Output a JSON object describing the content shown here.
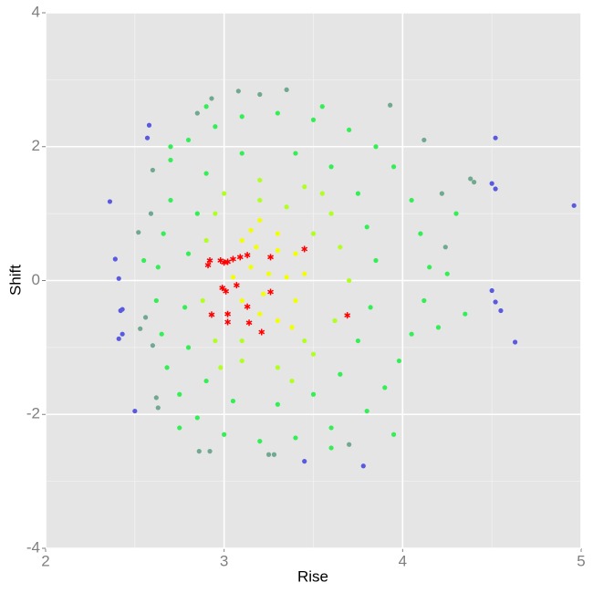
{
  "chart_data": {
    "type": "scatter",
    "xlabel": "Rise",
    "ylabel": "Shift",
    "xlim": [
      2,
      5
    ],
    "ylim": [
      -4,
      4
    ],
    "xticks": [
      2,
      3,
      4,
      5
    ],
    "yticks": [
      -4,
      -2,
      0,
      2,
      4
    ],
    "xminor": [
      2.5,
      3.5,
      4.5
    ],
    "yminor": [
      -3,
      -1,
      1,
      3
    ],
    "grid": true,
    "series": [
      {
        "color": "#5a5ae0",
        "marker": "circle",
        "x": [
          2.36,
          2.39,
          2.41,
          2.42,
          2.43,
          2.41,
          2.43,
          2.5,
          2.58,
          2.57,
          4.52,
          4.5,
          4.52,
          4.5,
          4.52,
          4.55,
          4.63,
          4.96,
          3.45,
          3.78
        ],
        "values": [
          1.18,
          0.32,
          0.03,
          -0.45,
          -0.43,
          -0.87,
          -0.8,
          -1.95,
          2.32,
          2.13,
          2.13,
          1.45,
          1.37,
          -0.15,
          -0.32,
          -0.45,
          -0.92,
          1.12,
          -2.7,
          -2.77
        ]
      },
      {
        "color": "#70a890",
        "marker": "circle",
        "x": [
          2.6,
          2.59,
          2.6,
          2.62,
          2.63,
          2.85,
          2.93,
          3.08,
          3.2,
          3.35,
          2.86,
          2.92,
          3.25,
          3.28,
          3.93,
          4.12,
          4.22,
          4.38,
          4.4,
          4.24,
          2.56,
          2.53,
          2.52,
          3.7
        ],
        "values": [
          1.65,
          1.0,
          -0.97,
          -1.75,
          -1.9,
          2.5,
          2.72,
          2.83,
          2.78,
          2.85,
          -2.55,
          -2.55,
          -2.6,
          -2.6,
          2.62,
          2.1,
          1.3,
          1.52,
          1.47,
          0.5,
          -0.55,
          -0.72,
          0.72,
          -2.45
        ]
      },
      {
        "color": "#33ee55",
        "marker": "circle",
        "x": [
          2.7,
          2.8,
          2.95,
          3.1,
          3.3,
          3.5,
          3.7,
          3.85,
          3.95,
          4.05,
          4.1,
          4.15,
          4.12,
          4.05,
          3.98,
          3.9,
          3.8,
          3.6,
          3.4,
          3.2,
          3.0,
          2.85,
          2.75,
          2.68,
          2.65,
          2.62,
          2.63,
          2.66,
          2.7,
          2.9,
          3.1,
          3.4,
          3.6,
          3.75,
          3.8,
          3.85,
          3.82,
          3.75,
          3.65,
          3.5,
          3.3,
          3.05,
          2.9,
          2.8,
          2.78,
          2.8,
          2.85,
          4.3,
          4.25,
          4.2,
          3.95,
          2.75,
          2.7,
          3.55,
          2.55,
          4.35,
          3.6,
          2.9
        ],
        "values": [
          1.8,
          2.1,
          2.3,
          2.45,
          2.5,
          2.4,
          2.25,
          2.0,
          1.7,
          1.2,
          0.7,
          0.2,
          -0.3,
          -0.8,
          -1.2,
          -1.6,
          -1.95,
          -2.2,
          -2.35,
          -2.4,
          -2.3,
          -2.05,
          -1.7,
          -1.3,
          -0.8,
          -0.3,
          0.2,
          0.7,
          1.2,
          1.6,
          1.9,
          1.9,
          1.7,
          1.3,
          0.8,
          0.3,
          -0.4,
          -0.9,
          -1.4,
          -1.7,
          -1.85,
          -1.8,
          -1.5,
          -1.0,
          -0.4,
          0.4,
          1.0,
          1.0,
          0.1,
          -0.7,
          -2.3,
          -2.2,
          2.0,
          2.6,
          0.3,
          -0.5,
          -2.5,
          2.6
        ]
      },
      {
        "color": "#b0ff20",
        "marker": "circle",
        "x": [
          3.0,
          3.2,
          3.45,
          3.6,
          3.65,
          3.7,
          3.62,
          3.5,
          3.3,
          3.1,
          2.95,
          2.88,
          2.9,
          2.95,
          3.35,
          3.5,
          3.1,
          3.45,
          3.2,
          2.98,
          3.55,
          3.38
        ],
        "values": [
          1.3,
          1.5,
          1.4,
          1.0,
          0.5,
          0.0,
          -0.6,
          -1.1,
          -1.3,
          -1.2,
          -0.9,
          -0.3,
          0.6,
          1.0,
          1.1,
          0.7,
          -0.9,
          -0.9,
          1.2,
          -1.3,
          1.3,
          -1.5
        ]
      },
      {
        "color": "#f2ff00",
        "marker": "circle",
        "x": [
          3.1,
          3.2,
          3.3,
          3.4,
          3.45,
          3.4,
          3.3,
          3.2,
          3.1,
          3.05,
          3.15,
          3.25,
          3.35,
          3.22,
          3.3,
          3.15,
          3.38,
          3.18
        ],
        "values": [
          0.6,
          0.9,
          0.7,
          0.4,
          0.1,
          -0.3,
          -0.6,
          -0.5,
          -0.3,
          0.05,
          0.2,
          0.1,
          0.05,
          -0.2,
          0.45,
          0.75,
          -0.7,
          0.5
        ]
      },
      {
        "color": "#ff0000",
        "marker": "asterisk",
        "x": [
          2.91,
          2.92,
          2.98,
          3.0,
          3.02,
          3.05,
          3.09,
          3.13,
          3.26,
          3.45,
          2.99,
          3.01,
          3.07,
          2.93,
          3.02,
          3.02,
          3.13,
          3.14,
          3.21,
          3.26,
          3.69
        ],
        "values": [
          0.23,
          0.3,
          0.3,
          0.27,
          0.28,
          0.32,
          0.35,
          0.38,
          0.35,
          0.47,
          -0.11,
          -0.16,
          -0.07,
          -0.51,
          -0.5,
          -0.62,
          -0.39,
          -0.63,
          -0.77,
          -0.17,
          -0.52
        ]
      }
    ]
  }
}
